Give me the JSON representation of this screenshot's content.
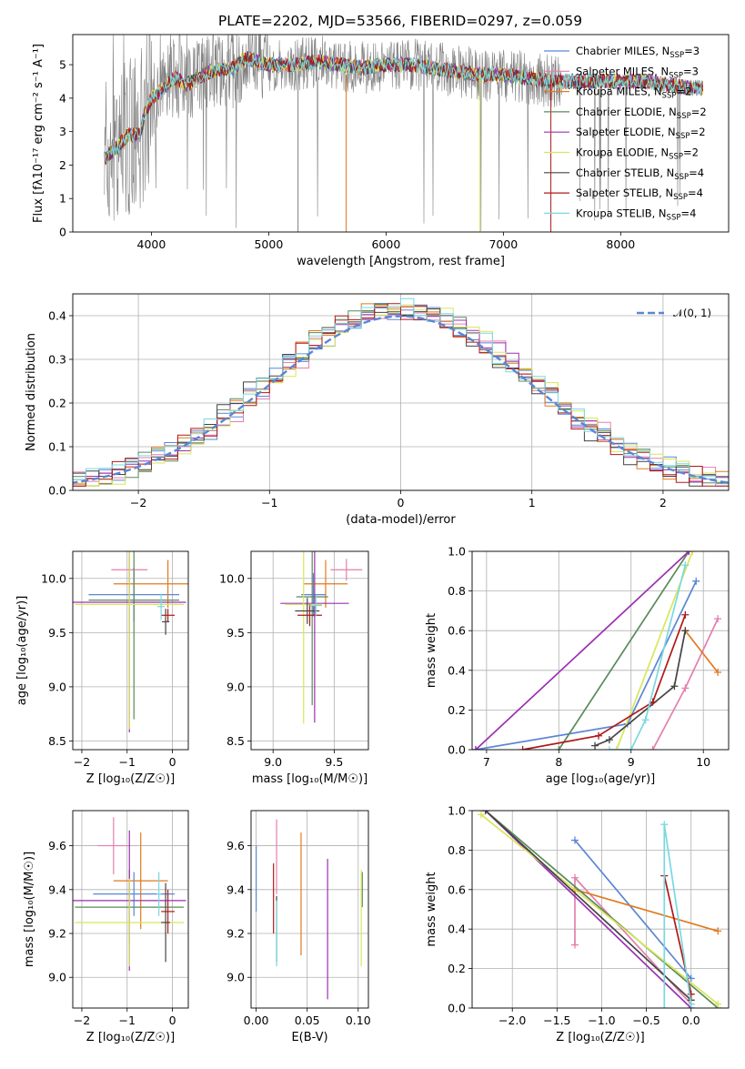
{
  "figure": {
    "title": "PLATE=2202, MJD=53566, FIBERID=0297, z=0.059"
  },
  "colors": {
    "Chabrier MILES": "#5b86d6",
    "Salpeter MILES": "#e37fae",
    "Kroupa MILES": "#e07a1f",
    "Chabrier ELODIE": "#5a8a5a",
    "Salpeter ELODIE": "#9b30b0",
    "Kroupa ELODIE": "#d8e65c",
    "Chabrier STELIB": "#444444",
    "Salpeter STELIB": "#b01818",
    "Kroupa STELIB": "#79d8e0",
    "data": "#808080",
    "normal": "#5b86d6"
  },
  "models": [
    {
      "name": "Chabrier MILES",
      "label": "Chabrier MILES, N",
      "nssp": "=3"
    },
    {
      "name": "Salpeter MILES",
      "label": "Salpeter MILES, N",
      "nssp": "=3"
    },
    {
      "name": "Kroupa MILES",
      "label": "Kroupa MILES, N",
      "nssp": "=2"
    },
    {
      "name": "Chabrier ELODIE",
      "label": "Chabrier ELODIE, N",
      "nssp": "=2"
    },
    {
      "name": "Salpeter ELODIE",
      "label": "Salpeter ELODIE, N",
      "nssp": "=2"
    },
    {
      "name": "Kroupa ELODIE",
      "label": "Kroupa ELODIE, N",
      "nssp": "=2"
    },
    {
      "name": "Chabrier STELIB",
      "label": "Chabrier STELIB, N",
      "nssp": "=4"
    },
    {
      "name": "Salpeter STELIB",
      "label": "Salpeter STELIB, N",
      "nssp": "=4"
    },
    {
      "name": "Kroupa STELIB",
      "label": "Kroupa STELIB, N",
      "nssp": "=4"
    }
  ],
  "chart_data": [
    {
      "id": "spectrum",
      "type": "line",
      "xlabel": "wavelength [Angstrom, rest frame]",
      "ylabel": "Flux [fλ10⁻¹⁷ erg cm⁻² s⁻¹ A⁻¹]",
      "xlim": [
        3330,
        8920
      ],
      "ylim": [
        0,
        5.9
      ],
      "xticks": [
        4000,
        5000,
        6000,
        7000,
        8000
      ],
      "yticks": [
        0,
        1,
        2,
        3,
        4,
        5
      ],
      "legend": "right",
      "continuum": {
        "x": [
          3600,
          3700,
          3800,
          3900,
          3950,
          4000,
          4100,
          4200,
          4300,
          4500,
          4700,
          4800,
          5000,
          5200,
          5400,
          5600,
          5800,
          6000,
          6200,
          6400,
          6600,
          6800,
          7000,
          7200,
          7400,
          7600,
          7800,
          8000,
          8200,
          8400,
          8600,
          8700
        ],
        "y": [
          2.2,
          2.5,
          2.9,
          2.9,
          3.6,
          4.0,
          4.3,
          4.6,
          4.4,
          4.8,
          4.9,
          5.2,
          5.0,
          5.0,
          5.1,
          5.0,
          4.9,
          5.0,
          5.0,
          4.9,
          4.8,
          4.7,
          4.7,
          4.6,
          4.5,
          4.5,
          4.5,
          4.5,
          4.5,
          4.4,
          4.3,
          4.3
        ]
      }
    },
    {
      "id": "residuals",
      "type": "line",
      "xlabel": "(data-model)/error",
      "ylabel": "Normed distribution",
      "xlim": [
        -2.5,
        2.5
      ],
      "ylim": [
        0,
        0.45
      ],
      "xticks": [
        -2,
        -1,
        0,
        1,
        2
      ],
      "xticklabels": [
        "−2",
        "−1",
        "0",
        "1",
        "2"
      ],
      "yticks": [
        0.0,
        0.1,
        0.2,
        0.3,
        0.4
      ],
      "yticklabels": [
        "0.0",
        "0.1",
        "0.2",
        "0.3",
        "0.4"
      ],
      "legend": "top-right",
      "legend_label": "𝒩(0, 1)",
      "grid": true
    },
    {
      "id": "age_vs_Z",
      "type": "scatter",
      "xlabel": "Z [log₁₀(Z/Z☉)]",
      "ylabel": "age  [log₁₀(age/yr)]",
      "xlim": [
        -2.2,
        0.35
      ],
      "ylim": [
        8.42,
        10.25
      ],
      "xticks": [
        -2,
        -1,
        0
      ],
      "xticklabels": [
        "−2",
        "−1",
        "0"
      ],
      "yticks": [
        8.5,
        9.0,
        9.5,
        10.0
      ],
      "yticklabels": [
        "8.5",
        "9.0",
        "9.5",
        "10.0"
      ],
      "series": [
        {
          "name": "Chabrier MILES",
          "x": -0.85,
          "y": 9.85,
          "xerr": 1.0,
          "yerr": 0.25
        },
        {
          "name": "Salpeter MILES",
          "x": -0.95,
          "y": 10.08,
          "xerr": 0.4,
          "yerr": 0.12
        },
        {
          "name": "Kroupa MILES",
          "x": -0.1,
          "y": 9.95,
          "xerr": 1.2,
          "yerr": 0.22
        },
        {
          "name": "Chabrier ELODIE",
          "x": -0.85,
          "y": 9.8,
          "xerr": 1.0,
          "yerr": 1.1
        },
        {
          "name": "Salpeter ELODIE",
          "x": -0.95,
          "y": 9.78,
          "xerr": 1.25,
          "yerr": 1.2
        },
        {
          "name": "Kroupa ELODIE",
          "x": -0.95,
          "y": 9.76,
          "xerr": 1.2,
          "yerr": 1.15
        },
        {
          "name": "Chabrier STELIB",
          "x": -0.15,
          "y": 9.6,
          "xerr": 0.08,
          "yerr": 0.12
        },
        {
          "name": "Salpeter STELIB",
          "x": -0.1,
          "y": 9.66,
          "xerr": 0.15,
          "yerr": 0.06
        },
        {
          "name": "Kroupa STELIB",
          "x": -0.25,
          "y": 9.74,
          "xerr": 0.08,
          "yerr": 0.12
        }
      ]
    },
    {
      "id": "age_vs_mass",
      "type": "scatter",
      "xlabel": "mass [log₁₀(M/M☉)]",
      "ylabel": "",
      "xlim": [
        8.82,
        9.78
      ],
      "ylim": [
        8.42,
        10.25
      ],
      "xticks": [
        9.0,
        9.5
      ],
      "xticklabels": [
        "9.0",
        "9.5"
      ],
      "yticks": [
        8.5,
        9.0,
        9.5,
        10.0
      ],
      "yticklabels": [
        "8.5",
        "9.0",
        "9.5",
        "10.0"
      ],
      "series": [
        {
          "name": "Chabrier MILES",
          "x": 9.33,
          "y": 9.85,
          "xerr": 0.1,
          "yerr": 0.2
        },
        {
          "name": "Salpeter MILES",
          "x": 9.6,
          "y": 10.08,
          "xerr": 0.13,
          "yerr": 0.1
        },
        {
          "name": "Kroupa MILES",
          "x": 9.43,
          "y": 9.95,
          "xerr": 0.18,
          "yerr": 0.22
        },
        {
          "name": "Chabrier ELODIE",
          "x": 9.32,
          "y": 9.83,
          "xerr": 0.13,
          "yerr": 1.0
        },
        {
          "name": "Salpeter ELODIE",
          "x": 9.34,
          "y": 9.77,
          "xerr": 0.28,
          "yerr": 1.1
        },
        {
          "name": "Kroupa ELODIE",
          "x": 9.25,
          "y": 9.76,
          "xerr": 0.15,
          "yerr": 1.1
        },
        {
          "name": "Chabrier STELIB",
          "x": 9.28,
          "y": 9.7,
          "xerr": 0.1,
          "yerr": 0.12
        },
        {
          "name": "Salpeter STELIB",
          "x": 9.3,
          "y": 9.66,
          "xerr": 0.1,
          "yerr": 0.1
        },
        {
          "name": "Kroupa STELIB",
          "x": 9.35,
          "y": 9.75,
          "xerr": 0.05,
          "yerr": 0.1
        }
      ]
    },
    {
      "id": "weight_vs_age",
      "type": "line",
      "xlabel": "age  [log₁₀(age/yr)]",
      "ylabel": "mass weight",
      "xlim": [
        6.8,
        10.35
      ],
      "ylim": [
        0,
        1
      ],
      "xticks": [
        7,
        8,
        9,
        10
      ],
      "yticks": [
        0,
        0.2,
        0.4,
        0.6,
        0.8,
        1.0
      ],
      "yticklabels": [
        "0.0",
        "0.2",
        "0.4",
        "0.6",
        "0.8",
        "1.0"
      ],
      "series": [
        {
          "name": "Chabrier MILES",
          "x": [
            6.85,
            8.95,
            9.9
          ],
          "y": [
            0.0,
            0.13,
            0.85
          ]
        },
        {
          "name": "Salpeter MILES",
          "x": [
            9.3,
            9.75,
            10.2
          ],
          "y": [
            0.0,
            0.31,
            0.66
          ]
        },
        {
          "name": "Kroupa MILES",
          "x": [
            9.75,
            10.2
          ],
          "y": [
            0.6,
            0.39
          ]
        },
        {
          "name": "Chabrier ELODIE",
          "x": [
            8.0,
            9.8
          ],
          "y": [
            0.0,
            1.0
          ]
        },
        {
          "name": "Salpeter ELODIE",
          "x": [
            6.85,
            9.8
          ],
          "y": [
            0.0,
            1.0
          ]
        },
        {
          "name": "Kroupa ELODIE",
          "x": [
            8.8,
            9.85
          ],
          "y": [
            0.0,
            1.0
          ]
        },
        {
          "name": "Chabrier STELIB",
          "x": [
            8.5,
            8.7,
            9.6,
            9.75
          ],
          "y": [
            0.02,
            0.05,
            0.32,
            0.6
          ]
        },
        {
          "name": "Salpeter STELIB",
          "x": [
            7.5,
            8.55,
            9.3,
            9.75
          ],
          "y": [
            0.0,
            0.07,
            0.24,
            0.68
          ]
        },
        {
          "name": "Kroupa STELIB",
          "x": [
            8.7,
            9.0,
            9.2,
            9.75
          ],
          "y": [
            0.0,
            0.0,
            0.15,
            0.93
          ]
        }
      ]
    },
    {
      "id": "mass_vs_Z",
      "type": "scatter",
      "xlabel": "Z [log₁₀(Z/Z☉)]",
      "ylabel": "mass [log₁₀(M/M☉)]",
      "xlim": [
        -2.2,
        0.35
      ],
      "ylim": [
        8.86,
        9.76
      ],
      "xticks": [
        -2,
        -1,
        0
      ],
      "xticklabels": [
        "−2",
        "−1",
        "0"
      ],
      "yticks": [
        9.0,
        9.2,
        9.4,
        9.6
      ],
      "yticklabels": [
        "9.0",
        "9.2",
        "9.4",
        "9.6"
      ],
      "series": [
        {
          "name": "Chabrier MILES",
          "x": -0.85,
          "y": 9.38,
          "xerr": 0.9,
          "yerr": 0.1
        },
        {
          "name": "Salpeter MILES",
          "x": -1.3,
          "y": 9.6,
          "xerr": 0.35,
          "yerr": 0.13
        },
        {
          "name": "Kroupa MILES",
          "x": -0.7,
          "y": 9.44,
          "xerr": 0.6,
          "yerr": 0.22
        },
        {
          "name": "Chabrier ELODIE",
          "x": -0.95,
          "y": 9.32,
          "xerr": 1.2,
          "yerr": 0.17
        },
        {
          "name": "Salpeter ELODIE",
          "x": -0.95,
          "y": 9.35,
          "xerr": 1.25,
          "yerr": 0.32
        },
        {
          "name": "Kroupa ELODIE",
          "x": -0.95,
          "y": 9.25,
          "xerr": 1.2,
          "yerr": 0.2
        },
        {
          "name": "Chabrier STELIB",
          "x": -0.15,
          "y": 9.25,
          "xerr": 0.1,
          "yerr": 0.18
        },
        {
          "name": "Salpeter STELIB",
          "x": -0.1,
          "y": 9.3,
          "xerr": 0.15,
          "yerr": 0.1
        },
        {
          "name": "Kroupa STELIB",
          "x": -0.3,
          "y": 9.38,
          "xerr": 0.05,
          "yerr": 0.1
        }
      ]
    },
    {
      "id": "mass_vs_ebv",
      "type": "scatter",
      "xlabel": "E(B-V)",
      "ylabel": "",
      "xlim": [
        -0.005,
        0.11
      ],
      "ylim": [
        8.86,
        9.76
      ],
      "xticks": [
        0.0,
        0.05,
        0.1
      ],
      "xticklabels": [
        "0.00",
        "0.05",
        "0.10"
      ],
      "yticks": [
        9.0,
        9.2,
        9.4,
        9.6
      ],
      "yticklabels": [
        "9.0",
        "9.2",
        "9.4",
        "9.6"
      ],
      "series": [
        {
          "name": "Chabrier MILES",
          "x": 0.0,
          "y": 9.45,
          "xerr": 0.0,
          "yerr": 0.15
        },
        {
          "name": "Salpeter MILES",
          "x": 0.02,
          "y": 9.55,
          "xerr": 0.0,
          "yerr": 0.17
        },
        {
          "name": "Kroupa MILES",
          "x": 0.044,
          "y": 9.38,
          "xerr": 0.0,
          "yerr": 0.28
        },
        {
          "name": "Chabrier ELODIE",
          "x": 0.104,
          "y": 9.4,
          "xerr": 0.0,
          "yerr": 0.08
        },
        {
          "name": "Salpeter ELODIE",
          "x": 0.07,
          "y": 9.22,
          "xerr": 0.0,
          "yerr": 0.32
        },
        {
          "name": "Kroupa ELODIE",
          "x": 0.103,
          "y": 9.27,
          "xerr": 0.0,
          "yerr": 0.22
        },
        {
          "name": "Chabrier STELIB",
          "x": 0.02,
          "y": 9.22,
          "xerr": 0.0,
          "yerr": 0.15
        },
        {
          "name": "Salpeter STELIB",
          "x": 0.017,
          "y": 9.36,
          "xerr": 0.0,
          "yerr": 0.16
        },
        {
          "name": "Kroupa STELIB",
          "x": 0.02,
          "y": 9.2,
          "xerr": 0.0,
          "yerr": 0.15
        }
      ]
    },
    {
      "id": "weight_vs_Z",
      "type": "line",
      "xlabel": "Z [log₁₀(Z/Z☉)]",
      "ylabel": "mass weight",
      "xlim": [
        -2.45,
        0.42
      ],
      "ylim": [
        0,
        1
      ],
      "xticks": [
        -2.0,
        -1.5,
        -1.0,
        -0.5,
        0.0
      ],
      "xticklabels": [
        "−2.0",
        "−1.5",
        "−1.0",
        "−0.5",
        "0.0"
      ],
      "yticks": [
        0,
        0.2,
        0.4,
        0.6,
        0.8,
        1.0
      ],
      "yticklabels": [
        "0.0",
        "0.2",
        "0.4",
        "0.6",
        "0.8",
        "1.0"
      ],
      "series": [
        {
          "name": "Chabrier MILES",
          "x": [
            -1.3,
            0.0
          ],
          "y": [
            0.85,
            0.15
          ]
        },
        {
          "name": "Salpeter MILES",
          "x": [
            -1.3,
            -1.3,
            0.0
          ],
          "y": [
            0.32,
            0.66,
            0.02
          ]
        },
        {
          "name": "Kroupa MILES",
          "x": [
            -1.3,
            0.3
          ],
          "y": [
            0.6,
            0.39
          ]
        },
        {
          "name": "Chabrier ELODIE",
          "x": [
            -2.3,
            0.3
          ],
          "y": [
            1.0,
            0.0
          ]
        },
        {
          "name": "Salpeter ELODIE",
          "x": [
            -2.3,
            0.0
          ],
          "y": [
            1.0,
            0.0
          ]
        },
        {
          "name": "Kroupa ELODIE",
          "x": [
            -2.35,
            0.3
          ],
          "y": [
            0.98,
            0.02
          ]
        },
        {
          "name": "Chabrier STELIB",
          "x": [
            -2.3,
            0.0
          ],
          "y": [
            1.0,
            0.04
          ]
        },
        {
          "name": "Salpeter STELIB",
          "x": [
            -0.3,
            0.0
          ],
          "y": [
            0.67,
            0.07
          ]
        },
        {
          "name": "Kroupa STELIB",
          "x": [
            -0.3,
            -0.3,
            0.0
          ],
          "y": [
            0.0,
            0.93,
            0.02
          ]
        }
      ]
    }
  ]
}
